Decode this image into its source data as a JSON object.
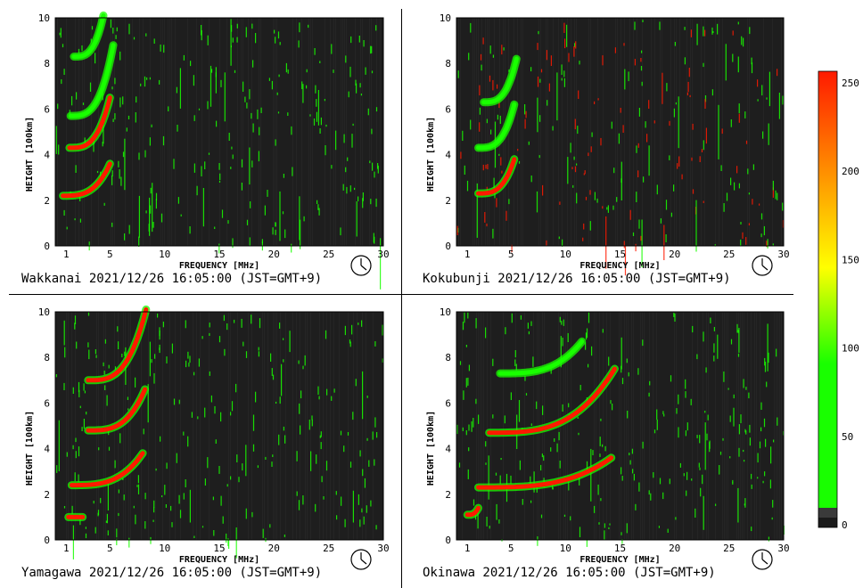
{
  "colorbar": {
    "ticks": [
      "250",
      "200",
      "150",
      "100",
      "50",
      "0"
    ],
    "colors": {
      "low": "#1a1a1a",
      "green": "#19ff00",
      "yellow": "#ffff00",
      "orange": "#ff8a00",
      "red": "#ff1a00"
    }
  },
  "chart_data": [
    {
      "type": "heatmap",
      "station": "Wakkanai",
      "caption": "Wakkanai 2021/12/26 16:05:00 (JST=GMT+9)",
      "xlabel": "FREQUENCY [MHz]",
      "ylabel": "HEIGHT [100km]",
      "xticks": [
        "1",
        "5",
        "10",
        "15",
        "20",
        "25",
        "30"
      ],
      "yticks": [
        "10",
        "8",
        "6",
        "4",
        "2",
        "0"
      ],
      "xlim": [
        0,
        30
      ],
      "ylim": [
        0,
        10
      ],
      "traces": [
        {
          "layer": "E",
          "freq_mhz": [
            0.7,
            5.0
          ],
          "height_100km": [
            2.2,
            3.6
          ],
          "intensity": "red"
        },
        {
          "layer": "F1",
          "freq_mhz": [
            1.3,
            5.0
          ],
          "height_100km": [
            4.3,
            6.5
          ],
          "intensity": "red"
        },
        {
          "layer": "F2",
          "freq_mhz": [
            1.4,
            5.3
          ],
          "height_100km": [
            5.7,
            8.8
          ],
          "intensity": "green"
        },
        {
          "layer": "F2-echo",
          "freq_mhz": [
            1.7,
            4.4
          ],
          "height_100km": [
            8.3,
            10.1
          ],
          "intensity": "green"
        }
      ]
    },
    {
      "type": "heatmap",
      "station": "Kokubunji",
      "caption": "Kokubunji 2021/12/26 16:05:00 (JST=GMT+9)",
      "xlabel": "FREQUENCY [MHz]",
      "ylabel": "HEIGHT [100km]",
      "xticks": [
        "1",
        "5",
        "10",
        "15",
        "20",
        "25",
        "30"
      ],
      "yticks": [
        "10",
        "8",
        "6",
        "4",
        "2",
        "0"
      ],
      "xlim": [
        0,
        30
      ],
      "ylim": [
        0,
        10
      ],
      "traces": [
        {
          "layer": "E",
          "freq_mhz": [
            2.0,
            5.3
          ],
          "height_100km": [
            2.3,
            3.8
          ],
          "intensity": "red"
        },
        {
          "layer": "F1",
          "freq_mhz": [
            2.0,
            5.3
          ],
          "height_100km": [
            4.3,
            6.2
          ],
          "intensity": "green"
        },
        {
          "layer": "F2",
          "freq_mhz": [
            2.5,
            5.5
          ],
          "height_100km": [
            6.3,
            8.2
          ],
          "intensity": "green"
        }
      ]
    },
    {
      "type": "heatmap",
      "station": "Yamagawa",
      "caption": "Yamagawa 2021/12/26 16:05:00 (JST=GMT+9)",
      "xlabel": "FREQUENCY [MHz]",
      "ylabel": "HEIGHT [100km]",
      "xticks": [
        "1",
        "5",
        "10",
        "15",
        "20",
        "25",
        "30"
      ],
      "yticks": [
        "10",
        "8",
        "6",
        "4",
        "2",
        "0"
      ],
      "xlim": [
        0,
        30
      ],
      "ylim": [
        0,
        10
      ],
      "traces": [
        {
          "layer": "Es",
          "freq_mhz": [
            1.2,
            2.5
          ],
          "height_100km": [
            1.0,
            1.0
          ],
          "intensity": "red"
        },
        {
          "layer": "E",
          "freq_mhz": [
            1.5,
            8.0
          ],
          "height_100km": [
            2.4,
            3.8
          ],
          "intensity": "red"
        },
        {
          "layer": "F",
          "freq_mhz": [
            3.0,
            8.2
          ],
          "height_100km": [
            4.8,
            6.6
          ],
          "intensity": "red"
        },
        {
          "layer": "F-echo",
          "freq_mhz": [
            3.0,
            8.3
          ],
          "height_100km": [
            7.0,
            10.1
          ],
          "intensity": "red"
        }
      ]
    },
    {
      "type": "heatmap",
      "station": "Okinawa",
      "caption": "Okinawa 2021/12/26 16:05:00 (JST=GMT+9)",
      "xlabel": "FREQUENCY [MHz]",
      "ylabel": "HEIGHT [100km]",
      "xticks": [
        "1",
        "5",
        "10",
        "15",
        "20",
        "25",
        "30"
      ],
      "yticks": [
        "10",
        "8",
        "6",
        "4",
        "2",
        "0"
      ],
      "xlim": [
        0,
        30
      ],
      "ylim": [
        0,
        10
      ],
      "traces": [
        {
          "layer": "Es",
          "freq_mhz": [
            1.0,
            2.0
          ],
          "height_100km": [
            1.1,
            1.4
          ],
          "intensity": "red"
        },
        {
          "layer": "E",
          "freq_mhz": [
            2.0,
            14.2
          ],
          "height_100km": [
            2.3,
            3.6
          ],
          "intensity": "red"
        },
        {
          "layer": "F",
          "freq_mhz": [
            3.0,
            14.5
          ],
          "height_100km": [
            4.7,
            7.5
          ],
          "intensity": "red"
        },
        {
          "layer": "F-echo",
          "freq_mhz": [
            4.0,
            11.5
          ],
          "height_100km": [
            7.3,
            8.7
          ],
          "intensity": "green"
        }
      ]
    }
  ]
}
